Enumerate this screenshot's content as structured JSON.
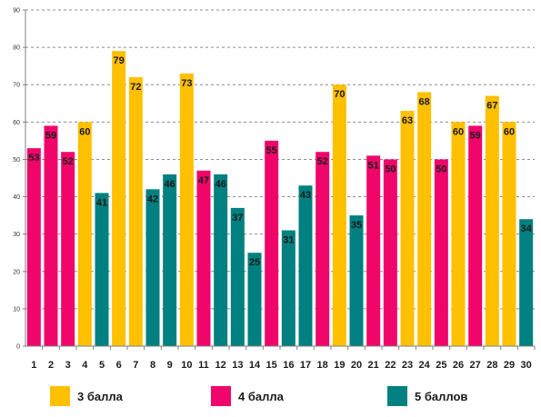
{
  "chart_data": {
    "type": "bar",
    "categories": [
      "1",
      "2",
      "3",
      "4",
      "5",
      "6",
      "7",
      "8",
      "9",
      "10",
      "11",
      "12",
      "13",
      "14",
      "15",
      "16",
      "17",
      "18",
      "19",
      "20",
      "21",
      "22",
      "23",
      "24",
      "25",
      "26",
      "27",
      "28",
      "29",
      "30"
    ],
    "values": [
      53,
      59,
      52,
      60,
      41,
      79,
      72,
      42,
      46,
      73,
      47,
      46,
      37,
      25,
      55,
      31,
      43,
      52,
      70,
      35,
      51,
      50,
      63,
      68,
      50,
      60,
      59,
      67,
      60,
      34
    ],
    "groups": [
      "4 балла",
      "4 балла",
      "4 балла",
      "3 балла",
      "5 баллов",
      "3 балла",
      "3 балла",
      "5 баллов",
      "5 баллов",
      "3 балла",
      "4 балла",
      "5 баллов",
      "5 баллов",
      "5 баллов",
      "4 балла",
      "5 баллов",
      "5 баллов",
      "4 балла",
      "3 балла",
      "5 баллов",
      "4 балла",
      "4 балла",
      "3 балла",
      "3 балла",
      "4 балла",
      "3 балла",
      "4 балла",
      "3 балла",
      "3 балла",
      "5 баллов"
    ],
    "series": [
      {
        "name": "3 балла",
        "color": "#FFC000"
      },
      {
        "name": "4 балла",
        "color": "#F0066A"
      },
      {
        "name": "5 баллов",
        "color": "#008080"
      }
    ],
    "ylim": [
      0,
      90
    ],
    "yticks": [
      0,
      10,
      20,
      30,
      40,
      50,
      60,
      70,
      80,
      90
    ],
    "grid": true,
    "legend_position": "bottom",
    "title": "",
    "xlabel": "",
    "ylabel": ""
  }
}
